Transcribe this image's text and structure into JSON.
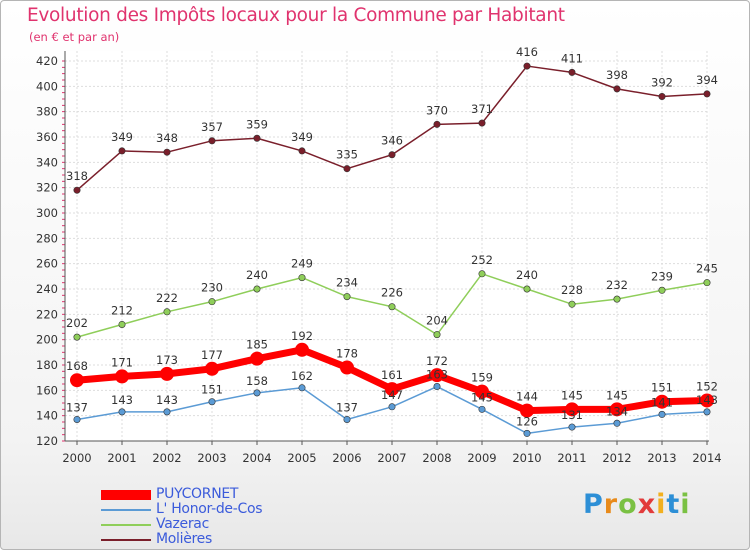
{
  "header": {
    "title": "Evolution des Impôts locaux pour la Commune par Habitant",
    "subtitle": "(en € et par an)"
  },
  "brand": {
    "letters": [
      "P",
      "r",
      "o",
      "x",
      "i",
      "t",
      "i"
    ],
    "colors": [
      "#2d8fd6",
      "#e88a1a",
      "#7ac143",
      "#e23b3b",
      "#f2b01e",
      "#2d8fd6",
      "#7ac143"
    ]
  },
  "chart_data": {
    "type": "line",
    "title": "Evolution des Impôts locaux pour la Commune par Habitant",
    "ylabel": "(en € et par an)",
    "x": [
      "2000",
      "2001",
      "2002",
      "2003",
      "2004",
      "2005",
      "2006",
      "2007",
      "2008",
      "2009",
      "2010",
      "2011",
      "2012",
      "2013",
      "2014"
    ],
    "ylim": [
      120,
      420
    ],
    "yticks": [
      "120",
      "140",
      "160",
      "180",
      "200",
      "220",
      "240",
      "260",
      "280",
      "300",
      "320",
      "340",
      "360",
      "380",
      "400",
      "420"
    ],
    "grid": true,
    "series": [
      {
        "name": "PUYCORNET",
        "color": "#ff0000",
        "values": [
          168,
          171,
          173,
          177,
          185,
          192,
          178,
          161,
          172,
          159,
          144,
          145,
          145,
          151,
          152
        ],
        "labels": [
          "168",
          "171",
          "173",
          "177",
          "185",
          "192",
          "178",
          "161",
          "172",
          "159",
          "144",
          "145",
          "145",
          "151",
          "152"
        ]
      },
      {
        "name": "L' Honor-de-Cos",
        "color": "#5b9bd5",
        "values": [
          137,
          143,
          143,
          151,
          158,
          162,
          137,
          147,
          163,
          145,
          126,
          131,
          134,
          141,
          143
        ],
        "labels": [
          "137",
          "143",
          "143",
          "151",
          "158",
          "162",
          "137",
          "147",
          "163",
          "145",
          "126",
          "131",
          "134",
          "141",
          "143"
        ]
      },
      {
        "name": "Vazerac",
        "color": "#8fce5a",
        "values": [
          202,
          212,
          222,
          230,
          240,
          249,
          234,
          226,
          204,
          252,
          240,
          228,
          232,
          239,
          245
        ],
        "labels": [
          "202",
          "212",
          "222",
          "230",
          "240",
          "249",
          "234",
          "226",
          "204",
          "252",
          "240",
          "228",
          "232",
          "239",
          "245"
        ]
      },
      {
        "name": "Molières",
        "color": "#7a1f2b",
        "values": [
          318,
          349,
          348,
          357,
          359,
          349,
          335,
          346,
          370,
          371,
          416,
          411,
          398,
          392,
          394
        ],
        "labels": [
          "318",
          "349",
          "348",
          "357",
          "359",
          "349",
          "335",
          "346",
          "370",
          "371",
          "416",
          "411",
          "398",
          "392",
          "394"
        ]
      }
    ],
    "legend": "bottom-left"
  }
}
